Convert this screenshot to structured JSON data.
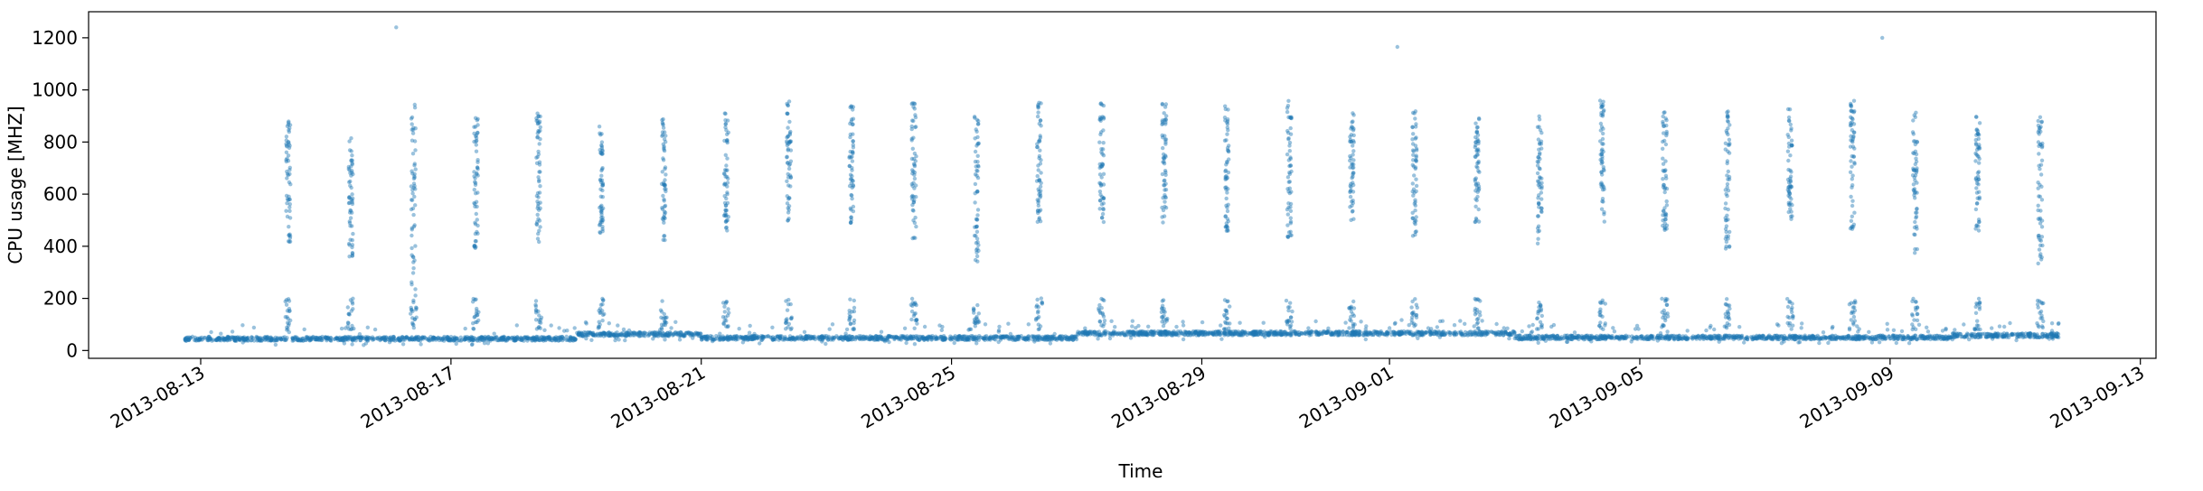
{
  "chart_data": {
    "type": "scatter",
    "title": "",
    "xlabel": "Time",
    "ylabel": "CPU usage [MHZ]",
    "x_range": [
      "2013-08-11T05:00",
      "2013-09-13T06:00"
    ],
    "x_data_range": [
      "2013-08-12T18:00",
      "2013-09-11T17:00"
    ],
    "ylim": [
      -30,
      1300
    ],
    "x_ticks": [
      "2013-08-13",
      "2013-08-17",
      "2013-08-21",
      "2013-08-25",
      "2013-08-29",
      "2013-09-01",
      "2013-09-05",
      "2013-09-09",
      "2013-09-13"
    ],
    "y_ticks": [
      0,
      200,
      400,
      600,
      800,
      1000,
      1200
    ],
    "marker_color": "#1f77b4",
    "marker_alpha": 0.45,
    "grid": false,
    "legend": false,
    "baseline_segments": [
      {
        "start": "2013-08-12",
        "end": "2013-08-19",
        "level": 45
      },
      {
        "start": "2013-08-19",
        "end": "2013-08-21",
        "level": 62
      },
      {
        "start": "2013-08-21",
        "end": "2013-08-27",
        "level": 48
      },
      {
        "start": "2013-08-27",
        "end": "2013-09-03",
        "level": 66
      },
      {
        "start": "2013-09-03",
        "end": "2013-09-10",
        "level": 50
      },
      {
        "start": "2013-09-10",
        "end": "2013-09-12",
        "level": 58
      }
    ],
    "daily_peaks": [
      {
        "date": "2013-08-14",
        "min": 410,
        "max": 880
      },
      {
        "date": "2013-08-15",
        "min": 360,
        "max": 830
      },
      {
        "date": "2013-08-16",
        "min": 200,
        "max": 960
      },
      {
        "date": "2013-08-17",
        "min": 390,
        "max": 900
      },
      {
        "date": "2013-08-18",
        "min": 400,
        "max": 910
      },
      {
        "date": "2013-08-19",
        "min": 450,
        "max": 860
      },
      {
        "date": "2013-08-20",
        "min": 420,
        "max": 890
      },
      {
        "date": "2013-08-21",
        "min": 450,
        "max": 920
      },
      {
        "date": "2013-08-22",
        "min": 470,
        "max": 960
      },
      {
        "date": "2013-08-23",
        "min": 490,
        "max": 950
      },
      {
        "date": "2013-08-24",
        "min": 410,
        "max": 950
      },
      {
        "date": "2013-08-25",
        "min": 330,
        "max": 930
      },
      {
        "date": "2013-08-26",
        "min": 490,
        "max": 960
      },
      {
        "date": "2013-08-27",
        "min": 470,
        "max": 960
      },
      {
        "date": "2013-08-28",
        "min": 490,
        "max": 960
      },
      {
        "date": "2013-08-29",
        "min": 450,
        "max": 950
      },
      {
        "date": "2013-08-30",
        "min": 430,
        "max": 960
      },
      {
        "date": "2013-08-31",
        "min": 500,
        "max": 920
      },
      {
        "date": "2013-09-01",
        "min": 440,
        "max": 920
      },
      {
        "date": "2013-09-02",
        "min": 480,
        "max": 930
      },
      {
        "date": "2013-09-03",
        "min": 410,
        "max": 910
      },
      {
        "date": "2013-09-04",
        "min": 490,
        "max": 960
      },
      {
        "date": "2013-09-05",
        "min": 460,
        "max": 920
      },
      {
        "date": "2013-09-06",
        "min": 390,
        "max": 920
      },
      {
        "date": "2013-09-07",
        "min": 480,
        "max": 930
      },
      {
        "date": "2013-09-08",
        "min": 460,
        "max": 960
      },
      {
        "date": "2013-09-09",
        "min": 360,
        "max": 920
      },
      {
        "date": "2013-09-10",
        "min": 460,
        "max": 900
      },
      {
        "date": "2013-09-11",
        "min": 300,
        "max": 900
      }
    ],
    "outliers": [
      {
        "x": "2013-08-16T03:00",
        "y": 1240
      },
      {
        "x": "2013-09-01T03:00",
        "y": 1165
      },
      {
        "x": "2013-09-08T21:00",
        "y": 1200
      }
    ]
  }
}
